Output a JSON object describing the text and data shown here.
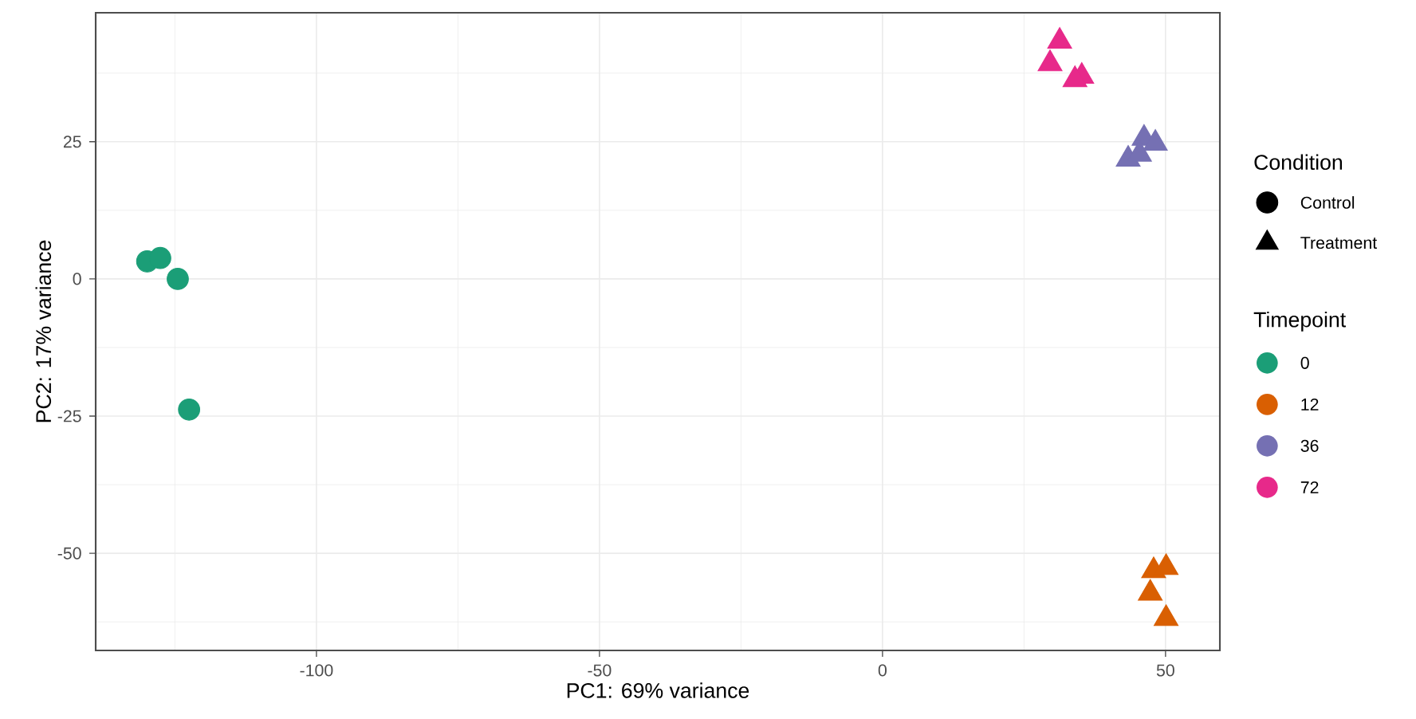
{
  "chart_data": {
    "type": "scatter",
    "xlabel": "PC1: 69% variance",
    "ylabel": "PC2: 17% variance",
    "xlim": [
      -139,
      59.6
    ],
    "ylim": [
      -67.7,
      48.5
    ],
    "xticks": [
      -100,
      -50,
      0,
      50
    ],
    "yticks": [
      -50,
      -25,
      0,
      25
    ],
    "grid": true,
    "legend": "right",
    "legend_title": "Timepoint",
    "annotations": [
      "Condition",
      "Control",
      "Treatment"
    ],
    "series": [
      {
        "name": "0",
        "color": "#1b9e77",
        "marker": "circle",
        "x": [
          -129.9,
          -127.6,
          -124.5,
          -122.5
        ],
        "values": [
          3.2,
          3.8,
          0,
          -23.8
        ]
      },
      {
        "name": "12",
        "color": "#d95f02",
        "marker": "triangle",
        "x": [
          47.9,
          50.1,
          47.3,
          50.1
        ],
        "values": [
          -53.2,
          -52.6,
          -57.3,
          -61.9
        ]
      },
      {
        "name": "36",
        "color": "#7570b3",
        "marker": "triangle",
        "x": [
          46.2,
          48.2,
          43.4,
          45.4
        ],
        "values": [
          25.6,
          24.7,
          21.8,
          22.7
        ]
      },
      {
        "name": "72",
        "color": "#e7298a",
        "marker": "triangle",
        "x": [
          31.3,
          29.6,
          35.2,
          34.0
        ],
        "values": [
          43.3,
          39.2,
          36.9,
          36.3
        ]
      }
    ]
  }
}
